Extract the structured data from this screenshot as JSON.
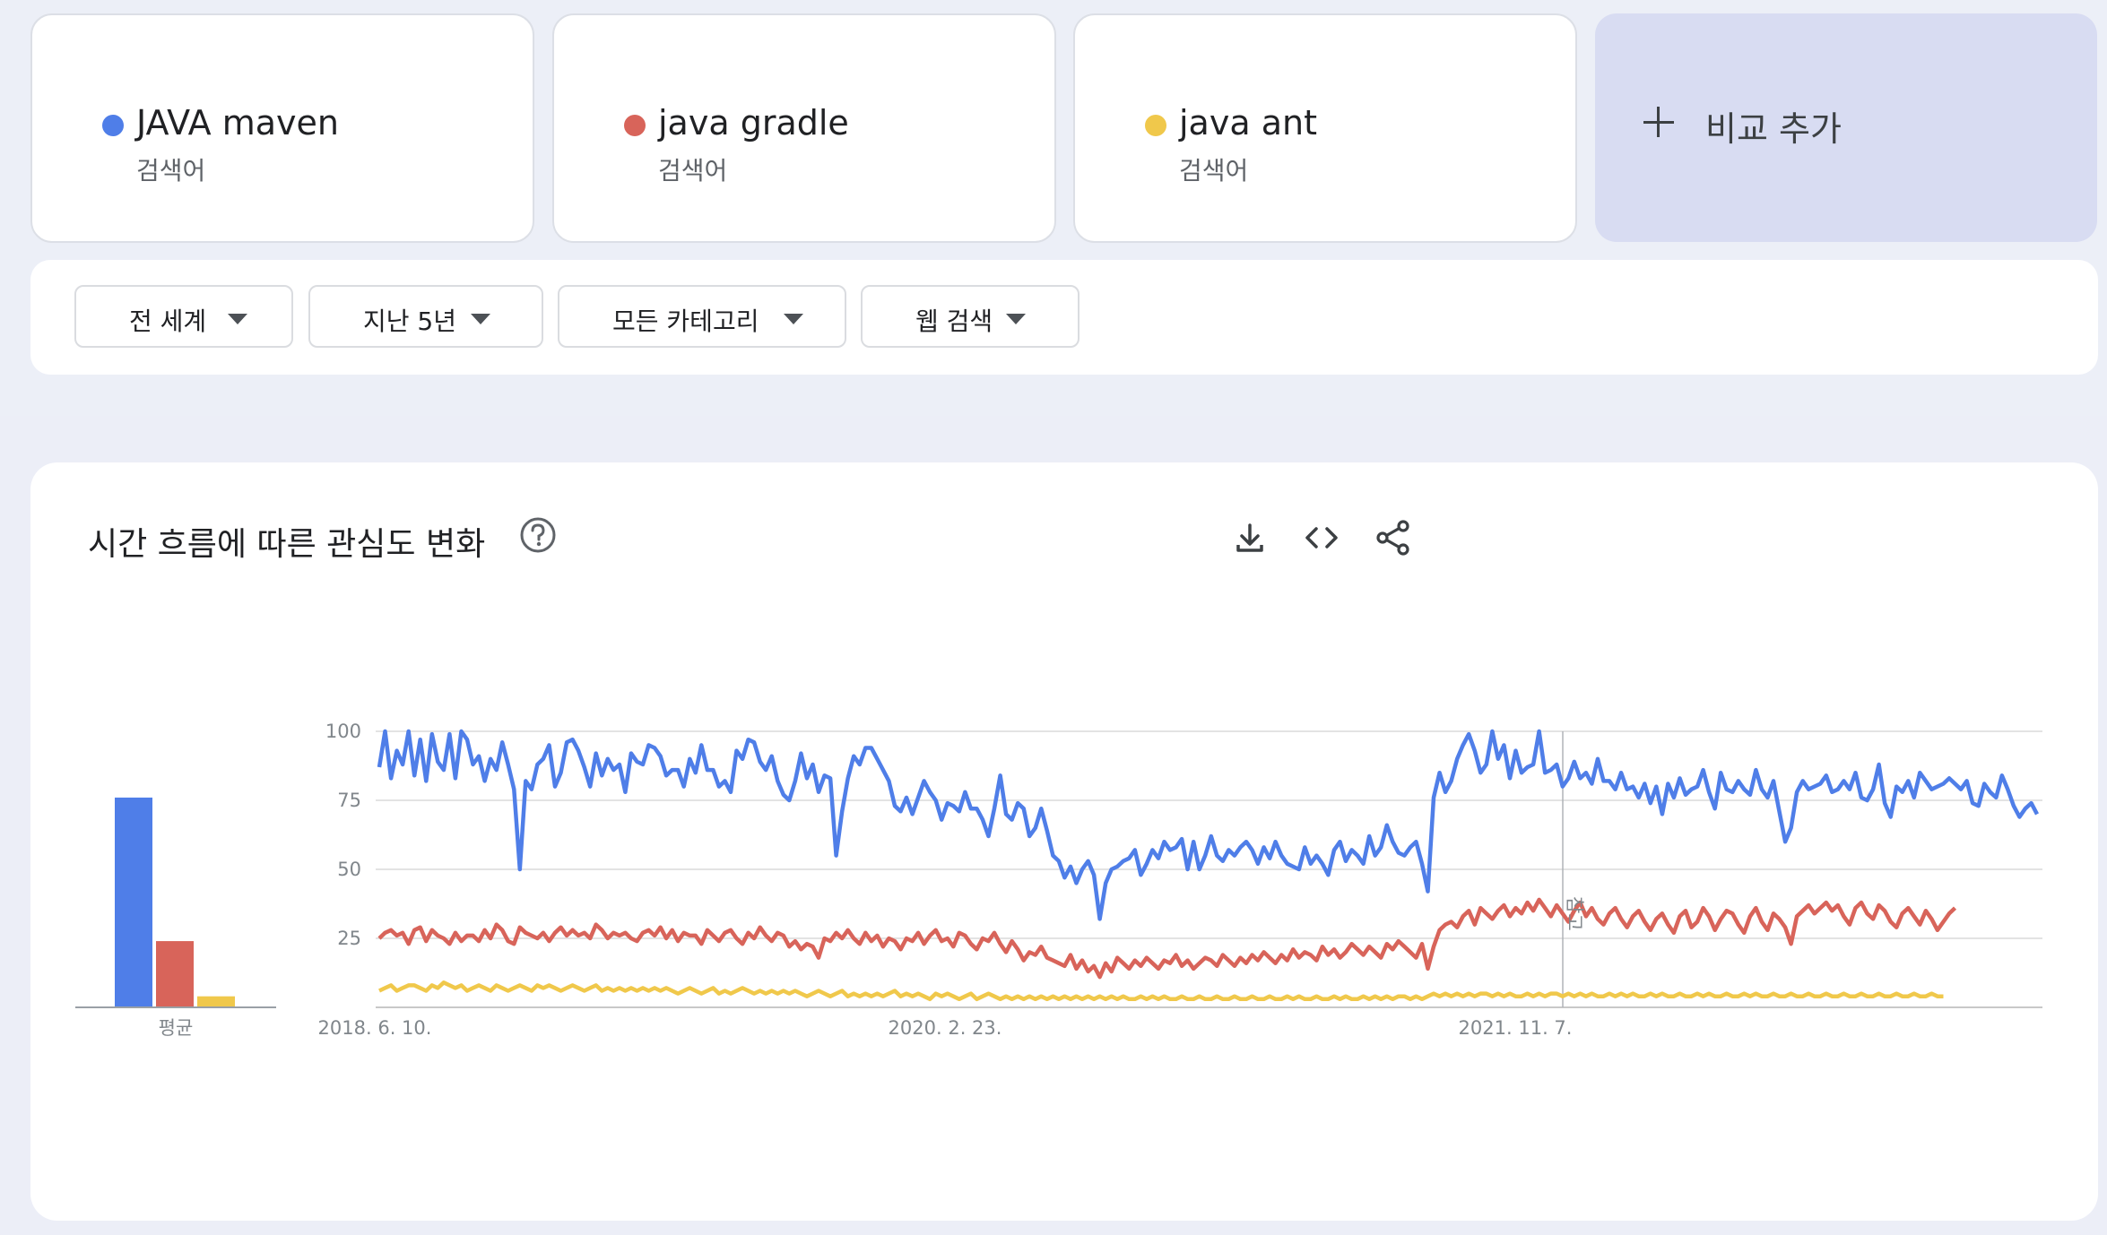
{
  "terms": [
    {
      "name": "JAVA maven",
      "type": "검색어",
      "color": "#4f7ee8"
    },
    {
      "name": "java gradle",
      "type": "검색어",
      "color": "#d8645a"
    },
    {
      "name": "java ant",
      "type": "검색어",
      "color": "#f0c84b"
    }
  ],
  "add_compare": {
    "label": "비교 추가",
    "icon": "plus-icon"
  },
  "filters": [
    {
      "label": "전 세계",
      "icon": "caret-down-icon"
    },
    {
      "label": "지난 5년",
      "icon": "caret-down-icon"
    },
    {
      "label": "모든 카테고리",
      "icon": "caret-down-icon"
    },
    {
      "label": "웹 검색",
      "icon": "caret-down-icon"
    }
  ],
  "section": {
    "title": "시간 흐름에 따른 관심도 변화",
    "help_icon": "help-circle-icon",
    "tools": [
      "download-icon",
      "embed-code-icon",
      "share-icon"
    ]
  },
  "chart_data": {
    "type": "line",
    "y_ticks": [
      "100",
      "75",
      "50",
      "25"
    ],
    "ylim": [
      0,
      100
    ],
    "x_tick_labels": [
      "2018. 6. 10.",
      "2020. 2. 23.",
      "2021. 11. 7."
    ],
    "annotation": {
      "label": "참고",
      "date": "2021. 11. 7."
    },
    "series": [
      {
        "name": "JAVA maven",
        "color": "#4f7ee8",
        "values": [
          87,
          100,
          83,
          93,
          88,
          100,
          84,
          97,
          82,
          99,
          89,
          86,
          99,
          83,
          100,
          97,
          88,
          91,
          82,
          90,
          86,
          96,
          88,
          79,
          50,
          82,
          79,
          88,
          90,
          95,
          80,
          85,
          96,
          97,
          93,
          87,
          80,
          92,
          84,
          90,
          86,
          88,
          78,
          92,
          89,
          88,
          95,
          94,
          91,
          84,
          86,
          86,
          80,
          90,
          85,
          95,
          86,
          86,
          80,
          82,
          78,
          93,
          90,
          97,
          96,
          89,
          86,
          91,
          82,
          77,
          75,
          82,
          92,
          83,
          88,
          78,
          84,
          83,
          55,
          71,
          83,
          91,
          88,
          94,
          94,
          90,
          86,
          82,
          73,
          71,
          76,
          70,
          76,
          82,
          78,
          75,
          68,
          74,
          73,
          71,
          78,
          72,
          72,
          68,
          62,
          72,
          84,
          70,
          68,
          74,
          72,
          62,
          65,
          72,
          64,
          55,
          53,
          47,
          51,
          45,
          50,
          53,
          48,
          32,
          45,
          50,
          51,
          53,
          54,
          57,
          48,
          52,
          57,
          54,
          60,
          57,
          58,
          61,
          50,
          60,
          50,
          55,
          62,
          55,
          53,
          57,
          55,
          58,
          60,
          57,
          52,
          58,
          54,
          60,
          55,
          52,
          51,
          50,
          58,
          52,
          55,
          52,
          48,
          57,
          60,
          53,
          57,
          55,
          52,
          62,
          55,
          58,
          66,
          60,
          56,
          55,
          58,
          60,
          52,
          42,
          76,
          85,
          78,
          82,
          90,
          95,
          99,
          93,
          85,
          88,
          100,
          90,
          95,
          83,
          93,
          85,
          87,
          88,
          100,
          85,
          86,
          88,
          80,
          83,
          89,
          83,
          85,
          81,
          90,
          82,
          82,
          79,
          85,
          79,
          80,
          76,
          81,
          74,
          80,
          70,
          81,
          76,
          83,
          77,
          79,
          80,
          86,
          78,
          72,
          85,
          79,
          78,
          82,
          79,
          77,
          86,
          79,
          76,
          82,
          71,
          60,
          65,
          78,
          82,
          79,
          80,
          81,
          84,
          78,
          79,
          82,
          79,
          85,
          76,
          75,
          79,
          88,
          74,
          69,
          80,
          78,
          82,
          76,
          85,
          82,
          79,
          80,
          81,
          83,
          81,
          79,
          82,
          74,
          73,
          81,
          78,
          76,
          84,
          79,
          73,
          69,
          72,
          74,
          70
        ]
      },
      {
        "name": "java gradle",
        "color": "#d8645a",
        "values": [
          25,
          27,
          28,
          26,
          27,
          23,
          28,
          29,
          24,
          28,
          26,
          25,
          23,
          27,
          24,
          26,
          26,
          24,
          28,
          25,
          30,
          28,
          24,
          23,
          29,
          27,
          26,
          25,
          27,
          24,
          27,
          29,
          26,
          28,
          26,
          27,
          25,
          30,
          28,
          25,
          27,
          26,
          27,
          25,
          24,
          27,
          28,
          26,
          29,
          25,
          28,
          24,
          27,
          26,
          26,
          23,
          28,
          26,
          24,
          27,
          28,
          25,
          23,
          27,
          25,
          29,
          26,
          24,
          27,
          26,
          22,
          24,
          21,
          23,
          22,
          18,
          25,
          24,
          27,
          25,
          28,
          25,
          23,
          27,
          24,
          26,
          22,
          25,
          24,
          21,
          25,
          24,
          27,
          23,
          26,
          28,
          24,
          25,
          22,
          27,
          26,
          23,
          21,
          25,
          24,
          27,
          23,
          20,
          24,
          21,
          17,
          20,
          19,
          22,
          18,
          17,
          16,
          15,
          19,
          14,
          17,
          13,
          15,
          11,
          16,
          13,
          18,
          16,
          14,
          17,
          15,
          18,
          16,
          14,
          17,
          16,
          19,
          15,
          17,
          14,
          16,
          18,
          17,
          15,
          19,
          17,
          15,
          18,
          16,
          19,
          17,
          20,
          18,
          16,
          19,
          17,
          21,
          18,
          20,
          19,
          17,
          22,
          19,
          21,
          18,
          20,
          23,
          21,
          19,
          22,
          20,
          18,
          23,
          21,
          24,
          22,
          20,
          18,
          23,
          14,
          22,
          28,
          30,
          31,
          29,
          33,
          35,
          30,
          36,
          34,
          32,
          35,
          37,
          33,
          36,
          34,
          38,
          35,
          39,
          36,
          33,
          37,
          34,
          31,
          35,
          38,
          33,
          36,
          32,
          30,
          34,
          36,
          32,
          29,
          33,
          35,
          31,
          28,
          32,
          34,
          30,
          27,
          33,
          35,
          29,
          31,
          36,
          33,
          28,
          32,
          35,
          34,
          30,
          27,
          33,
          36,
          31,
          28,
          34,
          32,
          29,
          23,
          33,
          35,
          37,
          34,
          36,
          38,
          35,
          37,
          33,
          30,
          36,
          38,
          34,
          32,
          37,
          35,
          31,
          29,
          34,
          36,
          33,
          30,
          35,
          32,
          28,
          31,
          34,
          36
        ]
      },
      {
        "name": "java ant",
        "color": "#f0c84b",
        "values": [
          6,
          7,
          8,
          6,
          7,
          8,
          8,
          7,
          6,
          8,
          7,
          9,
          8,
          7,
          8,
          6,
          7,
          8,
          7,
          6,
          8,
          7,
          6,
          7,
          8,
          7,
          6,
          8,
          7,
          8,
          7,
          6,
          7,
          8,
          7,
          6,
          7,
          8,
          6,
          7,
          6,
          7,
          6,
          7,
          6,
          7,
          6,
          7,
          6,
          7,
          6,
          5,
          6,
          7,
          6,
          5,
          6,
          7,
          5,
          6,
          5,
          6,
          7,
          6,
          5,
          6,
          5,
          6,
          5,
          6,
          5,
          6,
          5,
          4,
          5,
          6,
          5,
          4,
          5,
          6,
          4,
          5,
          4,
          5,
          4,
          5,
          4,
          5,
          6,
          4,
          5,
          4,
          5,
          4,
          3,
          5,
          4,
          5,
          4,
          3,
          4,
          5,
          3,
          4,
          5,
          4,
          3,
          4,
          3,
          4,
          3,
          4,
          3,
          4,
          3,
          4,
          3,
          4,
          3,
          4,
          3,
          4,
          3,
          4,
          3,
          4,
          3,
          4,
          3,
          3,
          4,
          3,
          4,
          3,
          4,
          3,
          3,
          4,
          3,
          3,
          4,
          3,
          3,
          4,
          3,
          3,
          4,
          3,
          3,
          4,
          3,
          3,
          4,
          3,
          3,
          4,
          3,
          4,
          3,
          3,
          4,
          3,
          3,
          4,
          3,
          4,
          3,
          3,
          4,
          3,
          4,
          3,
          4,
          3,
          4,
          4,
          3,
          4,
          3,
          4,
          5,
          4,
          5,
          4,
          5,
          4,
          5,
          4,
          5,
          5,
          4,
          5,
          4,
          5,
          4,
          4,
          5,
          4,
          5,
          4,
          5,
          5,
          4,
          5,
          4,
          5,
          4,
          5,
          4,
          4,
          5,
          4,
          5,
          4,
          5,
          4,
          4,
          5,
          4,
          5,
          4,
          4,
          5,
          4,
          4,
          5,
          4,
          5,
          4,
          4,
          5,
          4,
          4,
          5,
          4,
          5,
          4,
          4,
          5,
          4,
          4,
          5,
          4,
          4,
          5,
          4,
          4,
          5,
          4,
          4,
          5,
          4,
          4,
          5,
          4,
          4,
          5,
          4,
          4,
          5,
          4,
          4,
          5,
          4,
          4,
          5,
          4,
          4
        ]
      }
    ],
    "average": {
      "label": "평균",
      "values": [
        76,
        24,
        4
      ],
      "colors": [
        "#4f7ee8",
        "#d8645a",
        "#f0c84b"
      ]
    }
  }
}
